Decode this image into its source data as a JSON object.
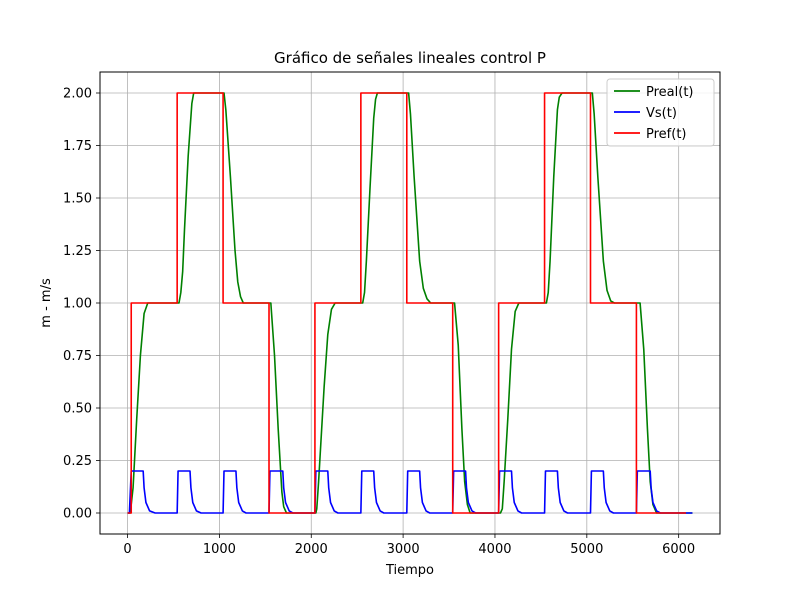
{
  "chart_data": {
    "type": "line",
    "title": "Gráfico de señales lineales control P",
    "xlabel": "Tiempo",
    "ylabel": "m - m/s",
    "xlim": [
      -300,
      6450
    ],
    "ylim": [
      -0.1,
      2.1
    ],
    "xticks": [
      0,
      1000,
      2000,
      3000,
      4000,
      5000,
      6000
    ],
    "xtick_labels": [
      "0",
      "1000",
      "2000",
      "3000",
      "4000",
      "5000",
      "6000"
    ],
    "yticks": [
      0.0,
      0.25,
      0.5,
      0.75,
      1.0,
      1.25,
      1.5,
      1.75,
      2.0
    ],
    "ytick_labels": [
      "0.00",
      "0.25",
      "0.50",
      "0.75",
      "1.00",
      "1.25",
      "1.50",
      "1.75",
      "2.00"
    ],
    "grid": true,
    "legend_position": "top-right",
    "series": [
      {
        "name": "Preal(t)",
        "color": "#008000",
        "x": [
          0,
          30,
          60,
          100,
          140,
          180,
          220,
          560,
          580,
          600,
          620,
          660,
          700,
          720,
          1050,
          1070,
          1120,
          1170,
          1200,
          1230,
          1260,
          1300,
          1560,
          1600,
          1640,
          1680,
          1700,
          1730,
          1760,
          2050,
          2060,
          2080,
          2100,
          2140,
          2180,
          2220,
          2260,
          2560,
          2580,
          2600,
          2640,
          2680,
          2700,
          2720,
          3060,
          3080,
          3120,
          3180,
          3220,
          3260,
          3300,
          3560,
          3600,
          3640,
          3670,
          3700,
          3730,
          3760,
          4060,
          4080,
          4100,
          4140,
          4180,
          4220,
          4260,
          4560,
          4580,
          4600,
          4640,
          4680,
          4700,
          4730,
          5060,
          5080,
          5120,
          5180,
          5220,
          5260,
          5300,
          5580,
          5620,
          5660,
          5690,
          5720,
          5760,
          5800,
          6150
        ],
        "y": [
          0,
          0,
          0.12,
          0.45,
          0.75,
          0.95,
          1.0,
          1.0,
          1.05,
          1.15,
          1.35,
          1.7,
          1.95,
          2.0,
          2.0,
          1.92,
          1.6,
          1.25,
          1.1,
          1.03,
          1.0,
          1.0,
          1.0,
          0.75,
          0.4,
          0.1,
          0.03,
          0.0,
          0.0,
          0,
          0.02,
          0.15,
          0.3,
          0.6,
          0.85,
          0.97,
          1.0,
          1.0,
          1.05,
          1.2,
          1.55,
          1.88,
          1.97,
          2.0,
          2.0,
          1.9,
          1.6,
          1.2,
          1.07,
          1.02,
          1.0,
          1.0,
          0.8,
          0.4,
          0.15,
          0.04,
          0.0,
          0.0,
          0,
          0.02,
          0.15,
          0.45,
          0.78,
          0.96,
          1.0,
          1.0,
          1.05,
          1.2,
          1.6,
          1.92,
          1.98,
          2.0,
          2.0,
          1.9,
          1.6,
          1.2,
          1.06,
          1.01,
          1.0,
          1.0,
          0.78,
          0.4,
          0.15,
          0.04,
          0.0,
          0.0,
          0.0
        ]
      },
      {
        "name": "Vs(t)",
        "color": "#0000ff",
        "x": [
          0,
          20,
          40,
          80,
          170,
          180,
          200,
          240,
          300,
          350,
          540,
          550,
          570,
          680,
          690,
          710,
          750,
          800,
          1040,
          1050,
          1070,
          1180,
          1190,
          1210,
          1250,
          1290,
          1540,
          1550,
          1570,
          1690,
          1700,
          1720,
          1760,
          1800,
          2040,
          2050,
          2070,
          2180,
          2190,
          2210,
          2250,
          2290,
          2540,
          2550,
          2570,
          2680,
          2690,
          2710,
          2750,
          2790,
          3040,
          3050,
          3070,
          3180,
          3190,
          3210,
          3250,
          3290,
          3540,
          3550,
          3570,
          3680,
          3690,
          3710,
          3750,
          3790,
          4040,
          4050,
          4070,
          4180,
          4190,
          4210,
          4250,
          4290,
          4540,
          4550,
          4570,
          4680,
          4690,
          4710,
          4750,
          4790,
          5040,
          5050,
          5070,
          5180,
          5190,
          5210,
          5250,
          5290,
          5540,
          5550,
          5570,
          5690,
          5700,
          5720,
          5760,
          5800,
          6150
        ],
        "y": [
          0,
          0,
          0.2,
          0.2,
          0.2,
          0.12,
          0.05,
          0.01,
          0,
          0,
          0,
          0.2,
          0.2,
          0.2,
          0.12,
          0.05,
          0.01,
          0,
          0,
          0.2,
          0.2,
          0.2,
          0.12,
          0.05,
          0.01,
          0,
          0,
          0.2,
          0.2,
          0.2,
          0.12,
          0.05,
          0.01,
          0,
          0,
          0.2,
          0.2,
          0.2,
          0.12,
          0.05,
          0.01,
          0,
          0,
          0.2,
          0.2,
          0.2,
          0.12,
          0.05,
          0.01,
          0,
          0,
          0.2,
          0.2,
          0.2,
          0.12,
          0.05,
          0.01,
          0,
          0,
          0.2,
          0.2,
          0.2,
          0.12,
          0.05,
          0.01,
          0,
          0,
          0.2,
          0.2,
          0.2,
          0.12,
          0.05,
          0.01,
          0,
          0,
          0.2,
          0.2,
          0.2,
          0.12,
          0.05,
          0.01,
          0,
          0,
          0.2,
          0.2,
          0.2,
          0.12,
          0.05,
          0.01,
          0,
          0,
          0.2,
          0.2,
          0.2,
          0.12,
          0.05,
          0.01,
          0,
          0
        ]
      },
      {
        "name": "Pref(t)",
        "color": "#ff0000",
        "x": [
          0,
          40,
          40,
          540,
          540,
          1040,
          1040,
          1540,
          1540,
          2040,
          2040,
          2540,
          2540,
          3040,
          3040,
          3540,
          3540,
          4040,
          4040,
          4540,
          4540,
          5040,
          5040,
          5540,
          5540,
          6080
        ],
        "y": [
          0,
          0,
          1,
          1,
          2,
          2,
          1,
          1,
          0,
          0,
          1,
          1,
          2,
          2,
          1,
          1,
          0,
          0,
          1,
          1,
          2,
          2,
          1,
          1,
          0,
          0
        ]
      }
    ]
  }
}
